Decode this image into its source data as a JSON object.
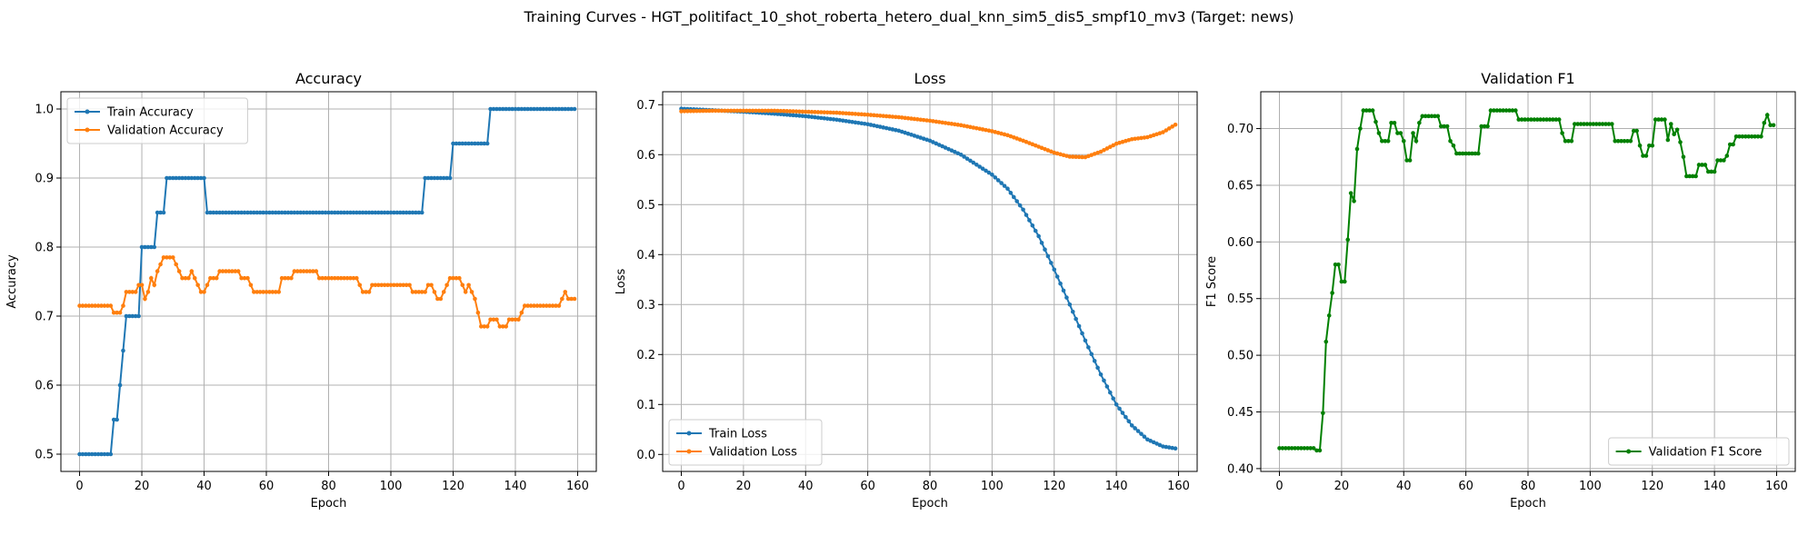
{
  "figure": {
    "suptitle": "Training Curves - HGT_politifact_10_shot_roberta_hetero_dual_knn_sim5_dis5_smpf10_mv3 (Target: news)"
  },
  "chart_data": [
    {
      "type": "line",
      "title": "Accuracy",
      "xlabel": "Epoch",
      "ylabel": "Accuracy",
      "xlim": [
        -6,
        166
      ],
      "ylim": [
        0.475,
        1.025
      ],
      "xticks": [
        0,
        20,
        40,
        60,
        80,
        100,
        120,
        140,
        160
      ],
      "yticks": [
        0.5,
        0.6,
        0.7,
        0.8,
        0.9,
        1.0
      ],
      "ytick_labels": [
        "0.5",
        "0.6",
        "0.7",
        "0.8",
        "0.9",
        "1.0"
      ],
      "grid": true,
      "legend": "upper left",
      "series": [
        {
          "name": "Train Accuracy",
          "color": "#1f77b4",
          "knots": [
            [
              0,
              0.5
            ],
            [
              10,
              0.5
            ],
            [
              11,
              0.55
            ],
            [
              12,
              0.55
            ],
            [
              13,
              0.6
            ],
            [
              14,
              0.65
            ],
            [
              15,
              0.7
            ],
            [
              19,
              0.7
            ],
            [
              20,
              0.8
            ],
            [
              24,
              0.8
            ],
            [
              25,
              0.85
            ],
            [
              27,
              0.85
            ],
            [
              28,
              0.9
            ],
            [
              40,
              0.9
            ],
            [
              41,
              0.85
            ],
            [
              110,
              0.85
            ],
            [
              111,
              0.9
            ],
            [
              119,
              0.9
            ],
            [
              120,
              0.95
            ],
            [
              131,
              0.95
            ],
            [
              132,
              1.0
            ],
            [
              159,
              1.0
            ]
          ]
        },
        {
          "name": "Validation Accuracy",
          "color": "#ff7f0e",
          "knots": [
            [
              0,
              0.715
            ],
            [
              10,
              0.715
            ],
            [
              11,
              0.705
            ],
            [
              13,
              0.705
            ],
            [
              14,
              0.715
            ],
            [
              15,
              0.735
            ],
            [
              18,
              0.735
            ],
            [
              19,
              0.745
            ],
            [
              20,
              0.745
            ],
            [
              21,
              0.725
            ],
            [
              22,
              0.735
            ],
            [
              23,
              0.755
            ],
            [
              24,
              0.745
            ],
            [
              25,
              0.765
            ],
            [
              26,
              0.775
            ],
            [
              27,
              0.785
            ],
            [
              30,
              0.785
            ],
            [
              31,
              0.775
            ],
            [
              32,
              0.765
            ],
            [
              33,
              0.755
            ],
            [
              35,
              0.755
            ],
            [
              36,
              0.765
            ],
            [
              37,
              0.755
            ],
            [
              38,
              0.745
            ],
            [
              39,
              0.735
            ],
            [
              40,
              0.735
            ],
            [
              41,
              0.745
            ],
            [
              42,
              0.755
            ],
            [
              44,
              0.755
            ],
            [
              45,
              0.765
            ],
            [
              51,
              0.765
            ],
            [
              52,
              0.755
            ],
            [
              54,
              0.755
            ],
            [
              55,
              0.745
            ],
            [
              56,
              0.735
            ],
            [
              64,
              0.735
            ],
            [
              65,
              0.755
            ],
            [
              68,
              0.755
            ],
            [
              69,
              0.765
            ],
            [
              76,
              0.765
            ],
            [
              77,
              0.755
            ],
            [
              89,
              0.755
            ],
            [
              90,
              0.745
            ],
            [
              91,
              0.735
            ],
            [
              93,
              0.735
            ],
            [
              94,
              0.745
            ],
            [
              106,
              0.745
            ],
            [
              107,
              0.735
            ],
            [
              111,
              0.735
            ],
            [
              112,
              0.745
            ],
            [
              113,
              0.745
            ],
            [
              114,
              0.735
            ],
            [
              115,
              0.725
            ],
            [
              116,
              0.725
            ],
            [
              117,
              0.735
            ],
            [
              118,
              0.745
            ],
            [
              119,
              0.755
            ],
            [
              122,
              0.755
            ],
            [
              123,
              0.745
            ],
            [
              124,
              0.735
            ],
            [
              125,
              0.745
            ],
            [
              126,
              0.735
            ],
            [
              127,
              0.725
            ],
            [
              128,
              0.705
            ],
            [
              129,
              0.685
            ],
            [
              131,
              0.685
            ],
            [
              132,
              0.695
            ],
            [
              134,
              0.695
            ],
            [
              135,
              0.685
            ],
            [
              137,
              0.685
            ],
            [
              138,
              0.695
            ],
            [
              141,
              0.695
            ],
            [
              142,
              0.705
            ],
            [
              143,
              0.715
            ],
            [
              154,
              0.715
            ],
            [
              155,
              0.725
            ],
            [
              156,
              0.735
            ],
            [
              157,
              0.725
            ],
            [
              159,
              0.725
            ]
          ]
        }
      ]
    },
    {
      "type": "line",
      "title": "Loss",
      "xlabel": "Epoch",
      "ylabel": "Loss",
      "xlim": [
        -6,
        166
      ],
      "ylim": [
        -0.034,
        0.726
      ],
      "xticks": [
        0,
        20,
        40,
        60,
        80,
        100,
        120,
        140,
        160
      ],
      "yticks": [
        0.0,
        0.1,
        0.2,
        0.3,
        0.4,
        0.5,
        0.6,
        0.7
      ],
      "ytick_labels": [
        "0.0",
        "0.1",
        "0.2",
        "0.3",
        "0.4",
        "0.5",
        "0.6",
        "0.7"
      ],
      "grid": true,
      "legend": "lower left",
      "series": [
        {
          "name": "Train Loss",
          "color": "#1f77b4",
          "knots": [
            [
              0,
              0.692
            ],
            [
              10,
              0.689
            ],
            [
              20,
              0.686
            ],
            [
              30,
              0.682
            ],
            [
              40,
              0.677
            ],
            [
              50,
              0.67
            ],
            [
              60,
              0.661
            ],
            [
              70,
              0.648
            ],
            [
              80,
              0.628
            ],
            [
              90,
              0.6
            ],
            [
              100,
              0.56
            ],
            [
              105,
              0.532
            ],
            [
              110,
              0.49
            ],
            [
              115,
              0.437
            ],
            [
              120,
              0.37
            ],
            [
              125,
              0.3
            ],
            [
              130,
              0.228
            ],
            [
              135,
              0.16
            ],
            [
              140,
              0.1
            ],
            [
              145,
              0.058
            ],
            [
              150,
              0.03
            ],
            [
              155,
              0.016
            ],
            [
              159,
              0.012
            ]
          ]
        },
        {
          "name": "Validation Loss",
          "color": "#ff7f0e",
          "knots": [
            [
              0,
              0.687
            ],
            [
              10,
              0.688
            ],
            [
              20,
              0.688
            ],
            [
              30,
              0.688
            ],
            [
              40,
              0.686
            ],
            [
              50,
              0.684
            ],
            [
              60,
              0.68
            ],
            [
              70,
              0.675
            ],
            [
              80,
              0.668
            ],
            [
              90,
              0.659
            ],
            [
              100,
              0.647
            ],
            [
              105,
              0.639
            ],
            [
              110,
              0.628
            ],
            [
              115,
              0.616
            ],
            [
              120,
              0.604
            ],
            [
              125,
              0.596
            ],
            [
              130,
              0.595
            ],
            [
              135,
              0.606
            ],
            [
              140,
              0.622
            ],
            [
              145,
              0.631
            ],
            [
              150,
              0.635
            ],
            [
              155,
              0.645
            ],
            [
              159,
              0.66
            ]
          ]
        }
      ]
    },
    {
      "type": "line",
      "title": "Validation F1",
      "xlabel": "Epoch",
      "ylabel": "F1 Score",
      "xlim": [
        -6,
        166
      ],
      "ylim": [
        0.3975,
        0.7325
      ],
      "xticks": [
        0,
        20,
        40,
        60,
        80,
        100,
        120,
        140,
        160
      ],
      "yticks": [
        0.4,
        0.45,
        0.5,
        0.55,
        0.6,
        0.65,
        0.7
      ],
      "ytick_labels": [
        "0.40",
        "0.45",
        "0.50",
        "0.55",
        "0.60",
        "0.65",
        "0.70"
      ],
      "grid": true,
      "legend": "lower right",
      "series": [
        {
          "name": "Validation F1 Score",
          "color": "#008000",
          "knots": [
            [
              0,
              0.418
            ],
            [
              11,
              0.418
            ],
            [
              12,
              0.416
            ],
            [
              13,
              0.416
            ],
            [
              14,
              0.449
            ],
            [
              15,
              0.512
            ],
            [
              16,
              0.535
            ],
            [
              17,
              0.555
            ],
            [
              18,
              0.58
            ],
            [
              19,
              0.58
            ],
            [
              20,
              0.565
            ],
            [
              21,
              0.565
            ],
            [
              22,
              0.602
            ],
            [
              23,
              0.643
            ],
            [
              24,
              0.636
            ],
            [
              25,
              0.682
            ],
            [
              26,
              0.7
            ],
            [
              27,
              0.716
            ],
            [
              30,
              0.716
            ],
            [
              31,
              0.706
            ],
            [
              32,
              0.696
            ],
            [
              33,
              0.689
            ],
            [
              35,
              0.689
            ],
            [
              36,
              0.705
            ],
            [
              37,
              0.705
            ],
            [
              38,
              0.696
            ],
            [
              39,
              0.696
            ],
            [
              40,
              0.689
            ],
            [
              41,
              0.672
            ],
            [
              42,
              0.672
            ],
            [
              43,
              0.696
            ],
            [
              44,
              0.689
            ],
            [
              45,
              0.705
            ],
            [
              46,
              0.711
            ],
            [
              51,
              0.711
            ],
            [
              52,
              0.702
            ],
            [
              54,
              0.702
            ],
            [
              55,
              0.689
            ],
            [
              56,
              0.685
            ],
            [
              57,
              0.678
            ],
            [
              64,
              0.678
            ],
            [
              65,
              0.702
            ],
            [
              67,
              0.702
            ],
            [
              68,
              0.716
            ],
            [
              76,
              0.716
            ],
            [
              77,
              0.708
            ],
            [
              90,
              0.708
            ],
            [
              91,
              0.696
            ],
            [
              92,
              0.689
            ],
            [
              94,
              0.689
            ],
            [
              95,
              0.704
            ],
            [
              107,
              0.704
            ],
            [
              108,
              0.689
            ],
            [
              113,
              0.689
            ],
            [
              114,
              0.698
            ],
            [
              115,
              0.698
            ],
            [
              116,
              0.685
            ],
            [
              117,
              0.676
            ],
            [
              118,
              0.676
            ],
            [
              119,
              0.685
            ],
            [
              120,
              0.685
            ],
            [
              121,
              0.708
            ],
            [
              124,
              0.708
            ],
            [
              125,
              0.69
            ],
            [
              126,
              0.704
            ],
            [
              127,
              0.695
            ],
            [
              128,
              0.699
            ],
            [
              129,
              0.688
            ],
            [
              130,
              0.675
            ],
            [
              131,
              0.658
            ],
            [
              134,
              0.658
            ],
            [
              135,
              0.668
            ],
            [
              137,
              0.668
            ],
            [
              138,
              0.662
            ],
            [
              140,
              0.662
            ],
            [
              141,
              0.672
            ],
            [
              143,
              0.672
            ],
            [
              144,
              0.676
            ],
            [
              145,
              0.686
            ],
            [
              146,
              0.686
            ],
            [
              147,
              0.693
            ],
            [
              155,
              0.693
            ],
            [
              156,
              0.705
            ],
            [
              157,
              0.712
            ],
            [
              158,
              0.703
            ],
            [
              159,
              0.703
            ]
          ]
        }
      ]
    }
  ]
}
